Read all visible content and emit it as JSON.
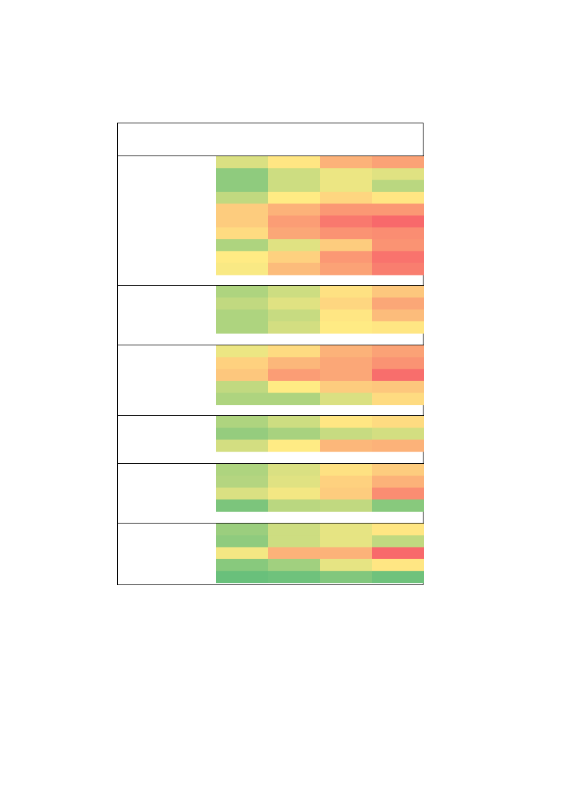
{
  "chart_data": {
    "type": "heatmap",
    "columns": 4,
    "color_scale": {
      "low": "#63be7b",
      "mid": "#ffeb84",
      "high": "#f8696b"
    },
    "groups": [
      {
        "label": "",
        "rows": [
          [
            0.38,
            0.52,
            0.72,
            0.78
          ],
          [
            0.14,
            0.34,
            0.44,
            0.4
          ],
          [
            0.14,
            0.34,
            0.44,
            0.28
          ],
          [
            0.3,
            0.5,
            0.58,
            0.52
          ],
          [
            0.62,
            0.72,
            0.82,
            0.82
          ],
          [
            0.62,
            0.8,
            0.94,
            1.0
          ],
          [
            0.56,
            0.76,
            0.84,
            0.86
          ],
          [
            0.24,
            0.4,
            0.62,
            0.84
          ],
          [
            0.5,
            0.6,
            0.82,
            0.96
          ],
          [
            0.48,
            0.68,
            0.78,
            0.92
          ]
        ]
      },
      {
        "label": "",
        "rows": [
          [
            0.24,
            0.34,
            0.54,
            0.64
          ],
          [
            0.3,
            0.4,
            0.58,
            0.76
          ],
          [
            0.24,
            0.32,
            0.52,
            0.68
          ],
          [
            0.24,
            0.36,
            0.5,
            0.52
          ]
        ]
      },
      {
        "label": "",
        "rows": [
          [
            0.44,
            0.56,
            0.72,
            0.78
          ],
          [
            0.6,
            0.7,
            0.76,
            0.84
          ],
          [
            0.64,
            0.8,
            0.76,
            0.98
          ],
          [
            0.3,
            0.5,
            0.62,
            0.64
          ],
          [
            0.24,
            0.24,
            0.38,
            0.56
          ]
        ]
      },
      {
        "label": "",
        "rows": [
          [
            0.24,
            0.34,
            0.52,
            0.56
          ],
          [
            0.16,
            0.22,
            0.32,
            0.36
          ],
          [
            0.36,
            0.5,
            0.7,
            0.72
          ]
        ]
      },
      {
        "label": "",
        "rows": [
          [
            0.24,
            0.38,
            0.54,
            0.62
          ],
          [
            0.26,
            0.4,
            0.6,
            0.72
          ],
          [
            0.38,
            0.46,
            0.62,
            0.86
          ],
          [
            0.08,
            0.28,
            0.3,
            0.12
          ]
        ]
      },
      {
        "label": "",
        "rows": [
          [
            0.18,
            0.34,
            0.42,
            0.52
          ],
          [
            0.14,
            0.34,
            0.42,
            0.3
          ],
          [
            0.46,
            0.72,
            0.72,
            1.0
          ],
          [
            0.12,
            0.2,
            0.42,
            0.52
          ],
          [
            0.02,
            0.04,
            0.1,
            0.04
          ]
        ]
      }
    ]
  }
}
